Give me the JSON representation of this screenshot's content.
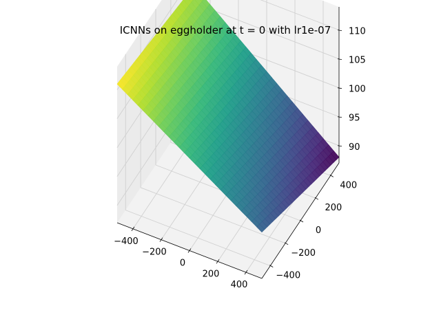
{
  "chart_data": {
    "type": "surface3d",
    "title": "ICNNs on eggholder at t = 0 with lr1e-07",
    "xlabel": "",
    "ylabel": "",
    "zlabel": "",
    "x_ticks": [
      "−400",
      "−200",
      "0",
      "200",
      "400"
    ],
    "y_ticks": [
      "−400",
      "−200",
      "0",
      "200",
      "400"
    ],
    "z_ticks": [
      "90",
      "95",
      "100",
      "105",
      "110"
    ],
    "x_range": [
      -512,
      512
    ],
    "y_range": [
      -512,
      512
    ],
    "z_range": [
      87,
      114
    ],
    "colormap": "viridis",
    "grid": true,
    "corners": [
      {
        "x": -512,
        "y": -512,
        "z": 111
      },
      {
        "x": -512,
        "y": 512,
        "z": 108
      },
      {
        "x": 512,
        "y": 512,
        "z": 88
      },
      {
        "x": 512,
        "y": -512,
        "z": 95
      }
    ]
  },
  "colors": {
    "pane": "#f2f2f2",
    "pane_side": "#ebebeb",
    "grid": "#d0d0d0",
    "axis": "#000000"
  }
}
